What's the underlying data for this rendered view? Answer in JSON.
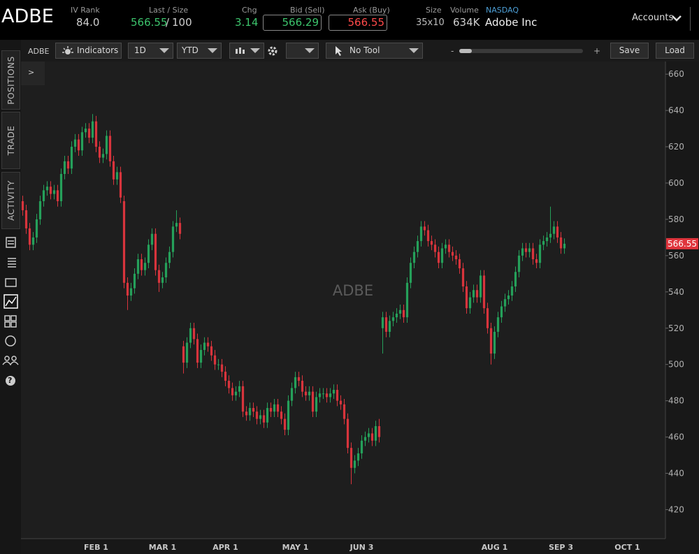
{
  "header": {
    "symbol": "ADBE",
    "iv_rank_label": "IV Rank",
    "iv_rank": "84.0",
    "last_size_label": "Last / Size",
    "last": "566.55",
    "separator": "/",
    "size": "100",
    "chg_label": "Chg",
    "chg": "3.14",
    "bid_label": "Bid (Sell)",
    "bid": "566.29",
    "ask_label": "Ask (Buy)",
    "ask": "566.55",
    "size_label": "Size",
    "bid_ask_size": "35x10",
    "volume_label": "Volume",
    "volume": "634K",
    "exchange": "NASDAQ",
    "company": "Adobe Inc",
    "accounts": "Accounts"
  },
  "toolbar": {
    "symbol": "ADBE",
    "indicators": "Indicators",
    "interval": "1D",
    "range": "YTD",
    "tool": "No Tool",
    "zoom_out": "-",
    "zoom_in": "+",
    "save": "Save",
    "load": "Load",
    "expand": ">"
  },
  "sidebar": {
    "tabs": [
      "POSITIONS",
      "TRADE",
      "ACTIVITY"
    ],
    "help": "?"
  },
  "chart_data": {
    "type": "candlestick",
    "watermark": "ADBE",
    "categories": [
      null,
      null,
      null,
      null,
      null,
      null,
      null,
      null,
      null,
      null,
      null,
      null,
      null,
      null,
      null,
      null,
      null,
      null,
      null,
      null,
      null,
      "FEB 1",
      null,
      null,
      null,
      null,
      null,
      null,
      null,
      null,
      null,
      null,
      null,
      null,
      null,
      null,
      null,
      null,
      null,
      null,
      "MAR 1",
      null,
      null,
      null,
      null,
      null,
      null,
      null,
      null,
      null,
      null,
      null,
      null,
      null,
      null,
      null,
      null,
      null,
      "APR 1",
      null,
      null,
      null,
      null,
      null,
      null,
      null,
      null,
      null,
      null,
      null,
      null,
      null,
      null,
      null,
      null,
      null,
      null,
      null,
      "MAY 1",
      null,
      null,
      null,
      null,
      null,
      null,
      null,
      null,
      null,
      null,
      null,
      null,
      null,
      null,
      null,
      null,
      null,
      null,
      "JUN 3",
      null,
      null,
      null,
      null,
      null,
      null,
      null,
      null,
      null,
      null,
      null,
      null,
      null,
      null,
      null,
      null,
      null,
      null,
      null,
      null,
      null,
      null,
      null,
      null,
      null,
      null,
      null,
      null,
      null,
      null,
      null,
      null,
      null,
      null,
      null,
      null,
      null,
      "AUG 1",
      null,
      null,
      null,
      null,
      null,
      null,
      null,
      null,
      null,
      null,
      null,
      null,
      null,
      null,
      null,
      null,
      null,
      null,
      "SEP 3",
      null,
      null,
      null,
      null,
      null,
      null,
      null,
      null,
      null,
      null,
      null,
      null,
      null,
      null,
      null,
      null,
      null,
      null,
      "OCT 1",
      null,
      null,
      null,
      null,
      null,
      null,
      null,
      null,
      null,
      null
    ],
    "open": [
      590,
      585,
      575,
      566,
      570,
      580,
      590,
      596,
      598,
      594,
      596,
      590,
      605,
      612,
      608,
      620,
      624,
      618,
      628,
      630,
      625,
      634,
      620,
      614,
      616,
      626,
      612,
      602,
      606,
      590,
      545,
      538,
      542,
      550,
      558,
      552,
      556,
      566,
      572,
      552,
      545,
      548,
      556,
      562,
      576,
      578,
      510,
      501,
      512,
      520,
      514,
      501,
      508,
      512,
      510,
      505,
      500,
      500,
      496,
      491,
      487,
      483,
      485,
      488,
      474,
      472,
      476,
      474,
      470,
      472,
      468,
      476,
      474,
      478,
      474,
      470,
      464,
      480,
      487,
      493,
      491,
      485,
      483,
      485,
      474,
      482,
      484,
      484,
      482,
      484,
      486,
      480,
      478,
      470,
      454,
      443,
      447,
      451,
      458,
      460,
      462,
      458,
      466,
      520,
      526,
      518,
      524,
      526,
      528,
      530,
      526,
      545,
      556,
      562,
      568,
      576,
      574,
      568,
      566,
      562,
      556,
      564,
      566,
      562,
      560,
      558,
      553,
      543,
      531,
      537,
      541,
      537,
      549,
      531,
      520,
      506,
      518,
      526,
      532,
      536,
      538,
      543,
      551,
      560,
      564,
      562,
      564,
      558,
      556,
      566,
      568,
      570,
      572,
      576,
      570,
      564,
      null,
      null,
      null,
      null,
      null,
      null,
      null,
      null,
      null,
      null,
      null,
      null,
      null,
      null,
      null,
      null,
      null,
      null,
      null,
      null,
      null,
      null,
      null,
      null,
      null,
      null,
      null,
      null
    ],
    "high": [
      593,
      588,
      578,
      573,
      583,
      593,
      599,
      601,
      601,
      599,
      599,
      608,
      615,
      615,
      623,
      627,
      627,
      631,
      633,
      633,
      638,
      637,
      623,
      619,
      629,
      629,
      615,
      609,
      609,
      593,
      548,
      545,
      553,
      561,
      561,
      559,
      569,
      575,
      575,
      555,
      551,
      559,
      565,
      579,
      585,
      581,
      513,
      515,
      523,
      523,
      517,
      511,
      515,
      515,
      513,
      508,
      503,
      503,
      499,
      494,
      490,
      488,
      491,
      491,
      477,
      479,
      479,
      477,
      475,
      475,
      479,
      479,
      481,
      481,
      477,
      473,
      483,
      490,
      496,
      496,
      494,
      488,
      488,
      488,
      485,
      487,
      487,
      487,
      487,
      489,
      489,
      483,
      481,
      473,
      457,
      450,
      454,
      461,
      463,
      465,
      465,
      469,
      470,
      529,
      529,
      527,
      529,
      531,
      533,
      533,
      548,
      559,
      565,
      571,
      579,
      579,
      577,
      571,
      569,
      565,
      567,
      569,
      569,
      565,
      563,
      561,
      556,
      546,
      540,
      544,
      544,
      552,
      552,
      534,
      523,
      521,
      529,
      535,
      539,
      541,
      546,
      554,
      563,
      567,
      567,
      567,
      567,
      561,
      569,
      571,
      573,
      587,
      579,
      579,
      573,
      569.5,
      null,
      null,
      null,
      null,
      null,
      null,
      null,
      null,
      null,
      null,
      null,
      null,
      null,
      null,
      null,
      null,
      null,
      null,
      null,
      null,
      null,
      null,
      null,
      null,
      null,
      null,
      null,
      null
    ],
    "low": [
      582,
      572,
      563,
      563,
      567,
      577,
      587,
      593,
      591,
      591,
      587,
      587,
      602,
      605,
      605,
      617,
      615,
      615,
      625,
      622,
      622,
      617,
      611,
      611,
      613,
      609,
      599,
      599,
      589,
      542,
      530,
      535,
      539,
      547,
      549,
      549,
      553,
      563,
      549,
      540,
      542,
      545,
      553,
      559,
      573,
      569,
      495,
      498,
      509,
      511,
      498,
      498,
      505,
      507,
      502,
      497,
      497,
      493,
      488,
      484,
      480,
      480,
      482,
      471,
      469,
      469,
      471,
      467,
      467,
      465,
      465,
      471,
      471,
      471,
      467,
      461,
      461,
      477,
      484,
      488,
      482,
      480,
      480,
      471,
      471,
      479,
      481,
      479,
      479,
      481,
      477,
      475,
      467,
      451,
      434,
      440,
      444,
      448,
      455,
      457,
      455,
      455,
      457,
      506,
      515,
      515,
      521,
      523,
      525,
      523,
      523,
      542,
      553,
      559,
      565,
      571,
      565,
      563,
      559,
      553,
      553,
      561,
      559,
      557,
      555,
      550,
      540,
      528,
      528,
      534,
      534,
      534,
      528,
      517,
      500,
      503,
      515,
      523,
      529,
      533,
      535,
      540,
      548,
      557,
      559,
      559,
      555,
      553,
      553,
      563,
      565,
      567,
      569,
      567,
      561,
      561,
      null,
      null,
      null,
      null,
      null,
      null,
      null,
      null,
      null,
      null,
      null,
      null,
      null,
      null,
      null,
      null,
      null,
      null,
      null,
      null,
      null,
      null,
      null,
      null,
      null,
      null,
      null,
      null
    ],
    "close": [
      585,
      575,
      566,
      570,
      580,
      590,
      596,
      598,
      594,
      596,
      590,
      605,
      612,
      608,
      620,
      624,
      618,
      628,
      630,
      625,
      634,
      620,
      614,
      616,
      626,
      612,
      602,
      606,
      592,
      545,
      538,
      542,
      550,
      558,
      552,
      556,
      566,
      572,
      552,
      545,
      548,
      556,
      562,
      576,
      578,
      572,
      501,
      512,
      520,
      514,
      501,
      508,
      512,
      510,
      505,
      500,
      500,
      496,
      491,
      487,
      483,
      485,
      488,
      474,
      472,
      476,
      474,
      470,
      472,
      468,
      476,
      474,
      478,
      474,
      470,
      464,
      480,
      487,
      493,
      491,
      485,
      483,
      485,
      474,
      482,
      484,
      484,
      482,
      484,
      486,
      480,
      478,
      470,
      454,
      443,
      447,
      451,
      458,
      460,
      462,
      458,
      466,
      460,
      526,
      518,
      524,
      526,
      528,
      530,
      526,
      545,
      556,
      562,
      568,
      576,
      574,
      568,
      566,
      562,
      556,
      564,
      566,
      562,
      560,
      558,
      553,
      543,
      531,
      537,
      541,
      537,
      549,
      531,
      520,
      506,
      518,
      526,
      532,
      536,
      538,
      543,
      551,
      560,
      564,
      562,
      564,
      558,
      556,
      566,
      568,
      570,
      572,
      576,
      570,
      564,
      566.55,
      null,
      null,
      null,
      null,
      null,
      null,
      null,
      null,
      null,
      null,
      null,
      null,
      null,
      null,
      null,
      null,
      null,
      null,
      null,
      null,
      null,
      null,
      null,
      null,
      null,
      null,
      null,
      null
    ],
    "up_color": "#25a05a",
    "down_color": "#d8343c",
    "ylim": [
      404,
      667
    ],
    "yticks": [
      420,
      440,
      460,
      480,
      500,
      520,
      540,
      560,
      580,
      600,
      620,
      640,
      660
    ],
    "last_price": 566.55,
    "last_price_color": "#e0353d"
  }
}
